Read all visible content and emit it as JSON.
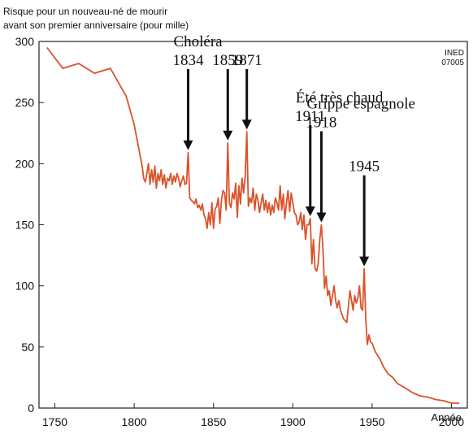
{
  "chart_data": {
    "type": "line",
    "ylabel_lines": [
      "Risque pour un nouveau-né de mourir",
      "avant son premier anniversaire (pour mille)"
    ],
    "xlabel": "Année",
    "source_badge": [
      "INED",
      "07005"
    ],
    "xlim": [
      1740,
      2010
    ],
    "ylim": [
      0,
      300
    ],
    "x_ticks": [
      1750,
      1800,
      1850,
      1900,
      1950,
      2000
    ],
    "y_ticks": [
      0,
      50,
      100,
      150,
      200,
      250,
      300
    ],
    "grid": false,
    "line_color": "#d9532b",
    "series": [
      {
        "x": [
          1745,
          1755,
          1765,
          1775,
          1785,
          1795,
          1800,
          1805,
          1806,
          1807,
          1808,
          1809,
          1810,
          1811,
          1812,
          1813,
          1814,
          1815,
          1816,
          1817,
          1818,
          1819,
          1820,
          1821,
          1822,
          1823,
          1824,
          1825,
          1826,
          1827,
          1828,
          1829,
          1830,
          1831,
          1832,
          1833,
          1834,
          1835,
          1836,
          1837,
          1838,
          1839,
          1840,
          1841,
          1842,
          1843,
          1844,
          1845,
          1846,
          1847,
          1848,
          1849,
          1850,
          1851,
          1852,
          1853,
          1854,
          1855,
          1856,
          1857,
          1858,
          1859,
          1860,
          1861,
          1862,
          1863,
          1864,
          1865,
          1866,
          1867,
          1868,
          1869,
          1870,
          1871,
          1872,
          1873,
          1874,
          1875,
          1876,
          1877,
          1878,
          1879,
          1880,
          1881,
          1882,
          1883,
          1884,
          1885,
          1886,
          1887,
          1888,
          1889,
          1890,
          1891,
          1892,
          1893,
          1894,
          1895,
          1896,
          1897,
          1898,
          1899,
          1900,
          1901,
          1902,
          1903,
          1904,
          1905,
          1906,
          1907,
          1908,
          1909,
          1910,
          1911,
          1912,
          1913,
          1914,
          1915,
          1916,
          1917,
          1918,
          1919,
          1920,
          1921,
          1922,
          1923,
          1924,
          1925,
          1926,
          1927,
          1928,
          1929,
          1930,
          1932,
          1934,
          1936,
          1938,
          1939,
          1940,
          1941,
          1942,
          1943,
          1944,
          1945,
          1946,
          1947,
          1948,
          1949,
          1950,
          1952,
          1955,
          1957,
          1960,
          1963,
          1966,
          1970,
          1975,
          1980,
          1985,
          1990,
          1995,
          2000,
          2005
        ],
        "values": [
          295,
          278,
          282,
          274,
          278,
          255,
          232,
          198,
          188,
          185,
          192,
          200,
          183,
          195,
          185,
          198,
          180,
          192,
          186,
          195,
          183,
          191,
          180,
          188,
          186,
          192,
          183,
          190,
          185,
          192,
          188,
          181,
          186,
          190,
          183,
          184,
          209,
          172,
          170,
          169,
          167,
          171,
          164,
          166,
          162,
          167,
          158,
          155,
          147,
          160,
          150,
          168,
          147,
          163,
          165,
          172,
          151,
          170,
          178,
          176,
          162,
          217,
          168,
          164,
          176,
          171,
          184,
          156,
          182,
          167,
          188,
          176,
          190,
          226,
          165,
          172,
          168,
          180,
          162,
          175,
          170,
          160,
          168,
          175,
          162,
          170,
          160,
          168,
          158,
          166,
          160,
          172,
          168,
          162,
          182,
          162,
          175,
          155,
          168,
          178,
          161,
          176,
          168,
          160,
          158,
          150,
          152,
          160,
          146,
          158,
          138,
          150,
          150,
          155,
          118,
          138,
          114,
          112,
          118,
          138,
          150,
          130,
          98,
          108,
          92,
          96,
          84,
          92,
          100,
          88,
          82,
          88,
          80,
          73,
          70,
          96,
          80,
          92,
          86,
          90,
          100,
          82,
          80,
          114,
          72,
          52,
          60,
          54,
          53,
          46,
          40,
          34,
          28,
          25,
          20,
          17,
          13,
          10,
          9,
          7,
          6,
          4,
          4
        ]
      }
    ],
    "annotations": [
      {
        "lines": [
          "Choléra",
          "1834"
        ],
        "year": 1834,
        "value": 209
      },
      {
        "lines": [
          "1859"
        ],
        "year": 1859,
        "value": 217
      },
      {
        "lines": [
          "1871"
        ],
        "year": 1871,
        "value": 226
      },
      {
        "lines": [
          "Été très chaud",
          "1911"
        ],
        "year": 1911,
        "value": 155
      },
      {
        "lines": [
          "Grippe espagnole",
          "1918"
        ],
        "year": 1918,
        "value": 150
      },
      {
        "lines": [
          "1945"
        ],
        "year": 1945,
        "value": 114
      }
    ]
  }
}
